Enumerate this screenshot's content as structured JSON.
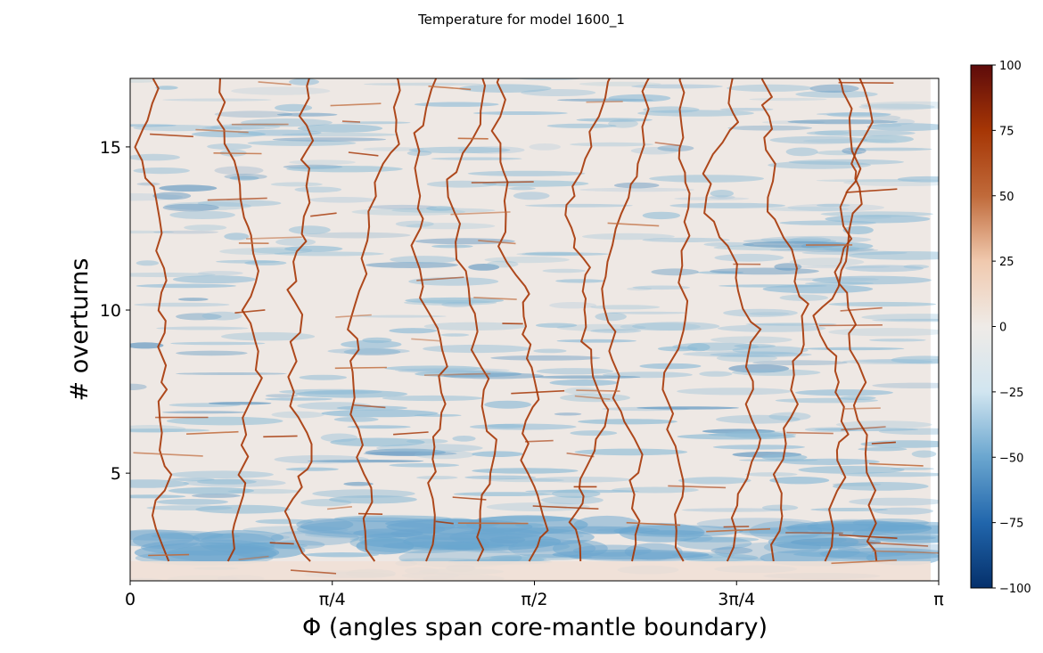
{
  "chart_data": {
    "type": "heatmap",
    "title": "Temperature for model 1600_1",
    "xlabel": "Φ (angles span core-mantle boundary)",
    "ylabel": "# overturns",
    "x_ticks": [
      {
        "value": 0,
        "label": "0"
      },
      {
        "value": 0.7854,
        "label": "π/4"
      },
      {
        "value": 1.5708,
        "label": "π/2"
      },
      {
        "value": 2.3562,
        "label": "3π/4"
      },
      {
        "value": 3.1416,
        "label": "π"
      }
    ],
    "y_ticks": [
      {
        "value": 5,
        "label": "5"
      },
      {
        "value": 10,
        "label": "10"
      },
      {
        "value": 15,
        "label": "15"
      }
    ],
    "xlim": [
      0,
      3.1416
    ],
    "ylim": [
      1.7,
      17.1
    ],
    "data_xmax": 3.11,
    "colorbar": {
      "ticks": [
        {
          "value": 100,
          "label": "100"
        },
        {
          "value": 75,
          "label": "75"
        },
        {
          "value": 50,
          "label": "50"
        },
        {
          "value": 25,
          "label": "25"
        },
        {
          "value": 0,
          "label": "0"
        },
        {
          "value": -25,
          "label": "−25"
        },
        {
          "value": -50,
          "label": "−50"
        },
        {
          "value": -75,
          "label": "−75"
        },
        {
          "value": -100,
          "label": "−100"
        }
      ],
      "range": [
        -100,
        100
      ],
      "colormap": "RdBu_r-like (blue cold, red hot)",
      "colors": [
        "#05306b",
        "#2166ac",
        "#6aa6cf",
        "#d1e5f0",
        "#efebe7",
        "#f0c9ae",
        "#c06a3a",
        "#a63605",
        "#5e0b0b"
      ]
    },
    "background_color": "#eee8e4",
    "cold_color": "#8dbbd6",
    "hot_color": "#a63605"
  }
}
